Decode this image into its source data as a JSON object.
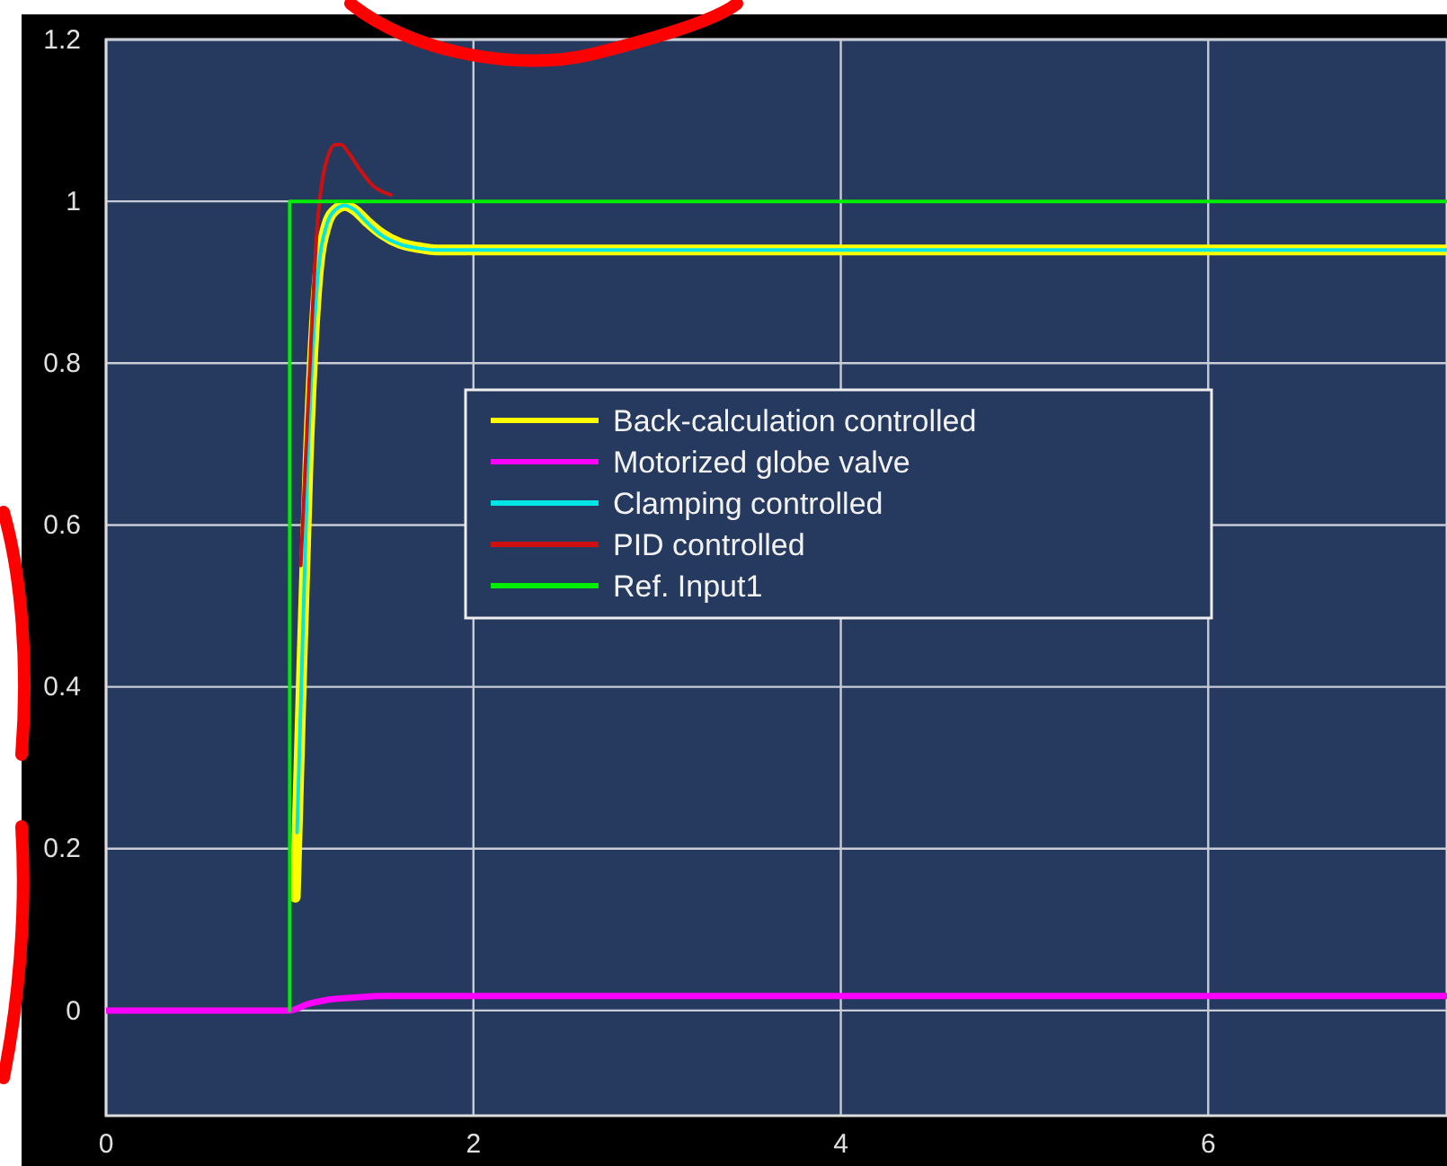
{
  "chart_data": {
    "type": "line",
    "xlim": [
      0,
      7.3
    ],
    "ylim": [
      -0.13,
      1.2
    ],
    "xticks": [
      0,
      2,
      4,
      6
    ],
    "yticks": [
      0,
      0.2,
      0.4,
      0.6,
      0.8,
      1,
      1.2
    ],
    "grid": true,
    "legend": "center",
    "series": [
      {
        "name": "Back-calculation controlled",
        "color": "#ffff00",
        "x": [
          1.03,
          1.05,
          1.1,
          1.15,
          1.2,
          1.25,
          1.3,
          1.35,
          1.42,
          1.5,
          1.6,
          1.7,
          1.8,
          7.3
        ],
        "values": [
          0.14,
          0.3,
          0.68,
          0.9,
          0.97,
          0.99,
          0.995,
          0.99,
          0.975,
          0.96,
          0.948,
          0.943,
          0.94,
          0.94
        ]
      },
      {
        "name": "Motorized globe valve",
        "color": "#ff00ff",
        "x": [
          0,
          1,
          1.1,
          1.2,
          1.35,
          1.5,
          7.3
        ],
        "values": [
          0,
          0,
          0.008,
          0.013,
          0.016,
          0.018,
          0.018
        ]
      },
      {
        "name": "Clamping controlled",
        "color": "#00e5e5",
        "x": [
          1.04,
          1.1,
          1.15,
          1.2,
          1.25,
          1.3,
          1.35,
          1.42,
          1.5,
          1.6,
          1.7,
          1.8,
          7.3
        ],
        "values": [
          0.22,
          0.69,
          0.9,
          0.97,
          0.99,
          0.995,
          0.99,
          0.974,
          0.958,
          0.947,
          0.942,
          0.94,
          0.94
        ]
      },
      {
        "name": "PID controlled",
        "color": "#d01010",
        "x": [
          1.06,
          1.1,
          1.15,
          1.2,
          1.25,
          1.28,
          1.32,
          1.38,
          1.45,
          1.55
        ],
        "values": [
          0.55,
          0.75,
          0.97,
          1.05,
          1.07,
          1.07,
          1.06,
          1.04,
          1.02,
          1.008
        ]
      },
      {
        "name": "Ref. Input1",
        "type": "step",
        "color": "#00ee00",
        "x": [
          1,
          1,
          7.3
        ],
        "values": [
          0,
          1,
          1
        ]
      }
    ]
  }
}
